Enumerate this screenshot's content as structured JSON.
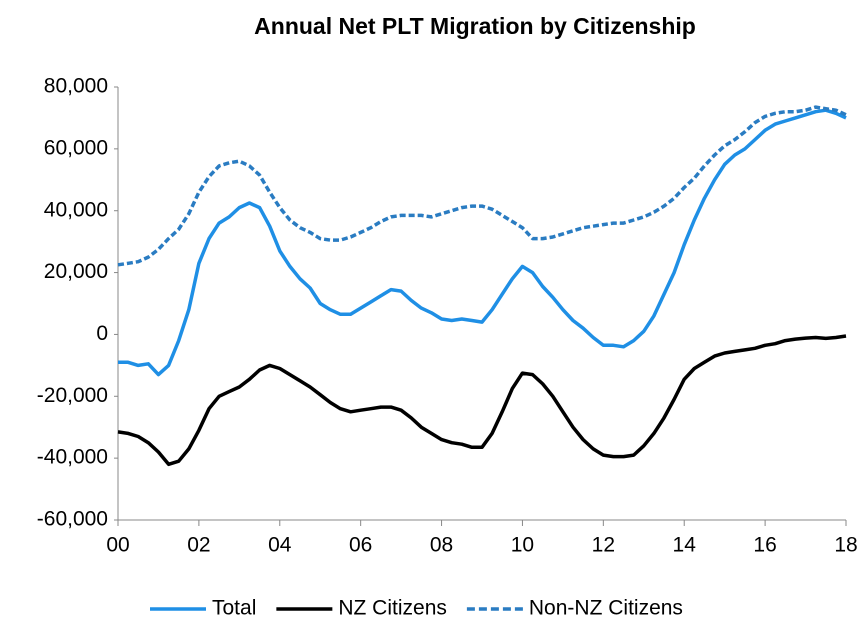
{
  "chart_data": {
    "type": "line",
    "title": "Annual Net PLT Migration by Citizenship",
    "x": [
      0,
      0.25,
      0.5,
      0.75,
      1,
      1.25,
      1.5,
      1.75,
      2,
      2.25,
      2.5,
      2.75,
      3,
      3.25,
      3.5,
      3.75,
      4,
      4.25,
      4.5,
      4.75,
      5,
      5.25,
      5.5,
      5.75,
      6,
      6.25,
      6.5,
      6.75,
      7,
      7.25,
      7.5,
      7.75,
      8,
      8.25,
      8.5,
      8.75,
      9,
      9.25,
      9.5,
      9.75,
      10,
      10.25,
      10.5,
      10.75,
      11,
      11.25,
      11.5,
      11.75,
      12,
      12.25,
      12.5,
      12.75,
      13,
      13.25,
      13.5,
      13.75,
      14,
      14.25,
      14.5,
      14.75,
      15,
      15.25,
      15.5,
      15.75,
      16,
      16.25,
      16.5,
      16.75,
      17,
      17.25,
      17.5,
      17.75,
      18
    ],
    "series": [
      {
        "name": "Total",
        "color": "#1f8fe5",
        "dash": false,
        "values": [
          -9000,
          -9000,
          -10000,
          -9500,
          -13000,
          -10000,
          -2000,
          8000,
          23000,
          31000,
          36000,
          38000,
          41000,
          42500,
          41000,
          35000,
          27000,
          22000,
          18000,
          15000,
          10000,
          8000,
          6500,
          6500,
          8500,
          10500,
          12500,
          14500,
          14000,
          11000,
          8500,
          7000,
          5000,
          4500,
          5000,
          4500,
          4000,
          8000,
          13000,
          18000,
          22000,
          20000,
          15500,
          12000,
          8000,
          4500,
          2000,
          -1000,
          -3500,
          -3500,
          -4000,
          -2000,
          1000,
          6000,
          13000,
          20000,
          29000,
          37000,
          44000,
          50000,
          55000,
          58000,
          60000,
          63000,
          66000,
          68000,
          69000,
          70000,
          71000,
          72000,
          72500,
          71500,
          70000
        ]
      },
      {
        "name": "NZ Citizens",
        "color": "#000000",
        "dash": false,
        "values": [
          -31500,
          -32000,
          -33000,
          -35000,
          -38000,
          -42000,
          -41000,
          -37000,
          -31000,
          -24000,
          -20000,
          -18500,
          -17000,
          -14500,
          -11500,
          -10000,
          -11000,
          -13000,
          -15000,
          -17000,
          -19500,
          -22000,
          -24000,
          -25000,
          -24500,
          -24000,
          -23500,
          -23500,
          -24500,
          -27000,
          -30000,
          -32000,
          -34000,
          -35000,
          -35500,
          -36500,
          -36500,
          -32000,
          -25000,
          -17500,
          -12500,
          -13000,
          -16000,
          -20000,
          -25000,
          -30000,
          -34000,
          -37000,
          -39000,
          -39500,
          -39500,
          -39000,
          -36000,
          -32000,
          -27000,
          -21000,
          -14500,
          -11000,
          -9000,
          -7000,
          -6000,
          -5500,
          -5000,
          -4500,
          -3500,
          -3000,
          -2000,
          -1500,
          -1200,
          -1000,
          -1300,
          -1000,
          -500
        ]
      },
      {
        "name": "Non-NZ Citizens",
        "color": "#2a7cc2",
        "dash": true,
        "values": [
          22500,
          23000,
          23500,
          25000,
          27500,
          31000,
          34000,
          39000,
          46000,
          51000,
          54500,
          55500,
          56000,
          54500,
          51500,
          46000,
          41000,
          37000,
          34500,
          33000,
          31000,
          30500,
          30500,
          31500,
          33000,
          34500,
          36500,
          38000,
          38500,
          38500,
          38500,
          38000,
          39000,
          40000,
          41000,
          41500,
          41500,
          40500,
          38500,
          36500,
          34500,
          31000,
          31000,
          31500,
          32500,
          33500,
          34500,
          35000,
          35500,
          36000,
          36000,
          37000,
          38000,
          39500,
          41500,
          44000,
          47500,
          50500,
          54500,
          58000,
          61000,
          63000,
          65500,
          68500,
          70500,
          71500,
          72000,
          72000,
          72500,
          73500,
          73000,
          72500,
          71000
        ]
      }
    ],
    "xlim": [
      0,
      18
    ],
    "xticks": [
      {
        "value": 0,
        "label": "00"
      },
      {
        "value": 2,
        "label": "02"
      },
      {
        "value": 4,
        "label": "04"
      },
      {
        "value": 6,
        "label": "06"
      },
      {
        "value": 8,
        "label": "08"
      },
      10,
      12,
      14,
      16,
      18
    ],
    "ylim": [
      -60000,
      80000
    ],
    "yticks": [
      {
        "value": -60000,
        "label": "-60,000"
      },
      {
        "value": -40000,
        "label": "-40,000"
      },
      {
        "value": -20000,
        "label": "-20,000"
      },
      0,
      {
        "value": 20000,
        "label": "20,000"
      },
      {
        "value": 40000,
        "label": "40,000"
      },
      {
        "value": 60000,
        "label": "60,000"
      },
      {
        "value": 80000,
        "label": "80,000"
      }
    ],
    "grid": false,
    "legend": "bottom"
  }
}
